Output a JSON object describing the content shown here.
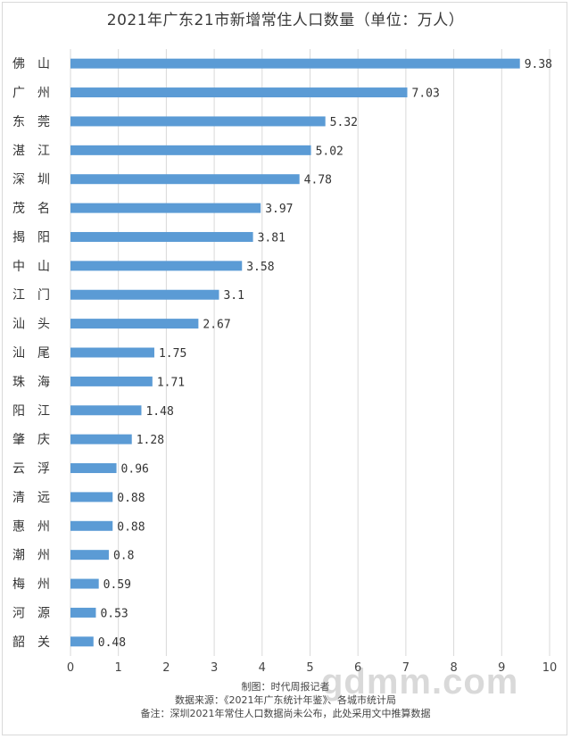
{
  "chart_data": {
    "type": "bar",
    "orientation": "horizontal",
    "title": "2021年广东21市新增常住人口数量（单位：万人）",
    "categories": [
      "佛　山",
      "广　州",
      "东　莞",
      "湛　江",
      "深　圳",
      "茂　名",
      "揭　阳",
      "中　山",
      "江　门",
      "汕　头",
      "汕　尾",
      "珠　海",
      "阳　江",
      "肇　庆",
      "云　浮",
      "清　远",
      "惠　州",
      "潮　州",
      "梅　州",
      "河　源",
      "韶　关"
    ],
    "values": [
      9.38,
      7.03,
      5.32,
      5.02,
      4.78,
      3.97,
      3.81,
      3.58,
      3.1,
      2.67,
      1.75,
      1.71,
      1.48,
      1.28,
      0.96,
      0.88,
      0.88,
      0.8,
      0.59,
      0.53,
      0.48
    ],
    "value_labels": [
      "9.38",
      "7.03",
      "5.32",
      "5.02",
      "4.78",
      "3.97",
      "3.81",
      "3.58",
      "3.1",
      "2.67",
      "1.75",
      "1.71",
      "1.48",
      "1.28",
      "0.96",
      "0.88",
      "0.88",
      "0.8",
      "0.59",
      "0.53",
      "0.48"
    ],
    "xlim": [
      0,
      10
    ],
    "xticks": [
      "0",
      "1",
      "2",
      "3",
      "4",
      "5",
      "6",
      "7",
      "8",
      "9",
      "10"
    ],
    "grid": true,
    "bar_color": "#5b9bd5"
  },
  "notes": {
    "credit": "制图：时代周报记者",
    "source": "数据来源：《2021年广东统计年鉴》、各城市统计局",
    "remark": "备注：深圳2021年常住人口数据尚未公布，此处采用文中推算数据"
  },
  "watermark": "gdmm.com"
}
